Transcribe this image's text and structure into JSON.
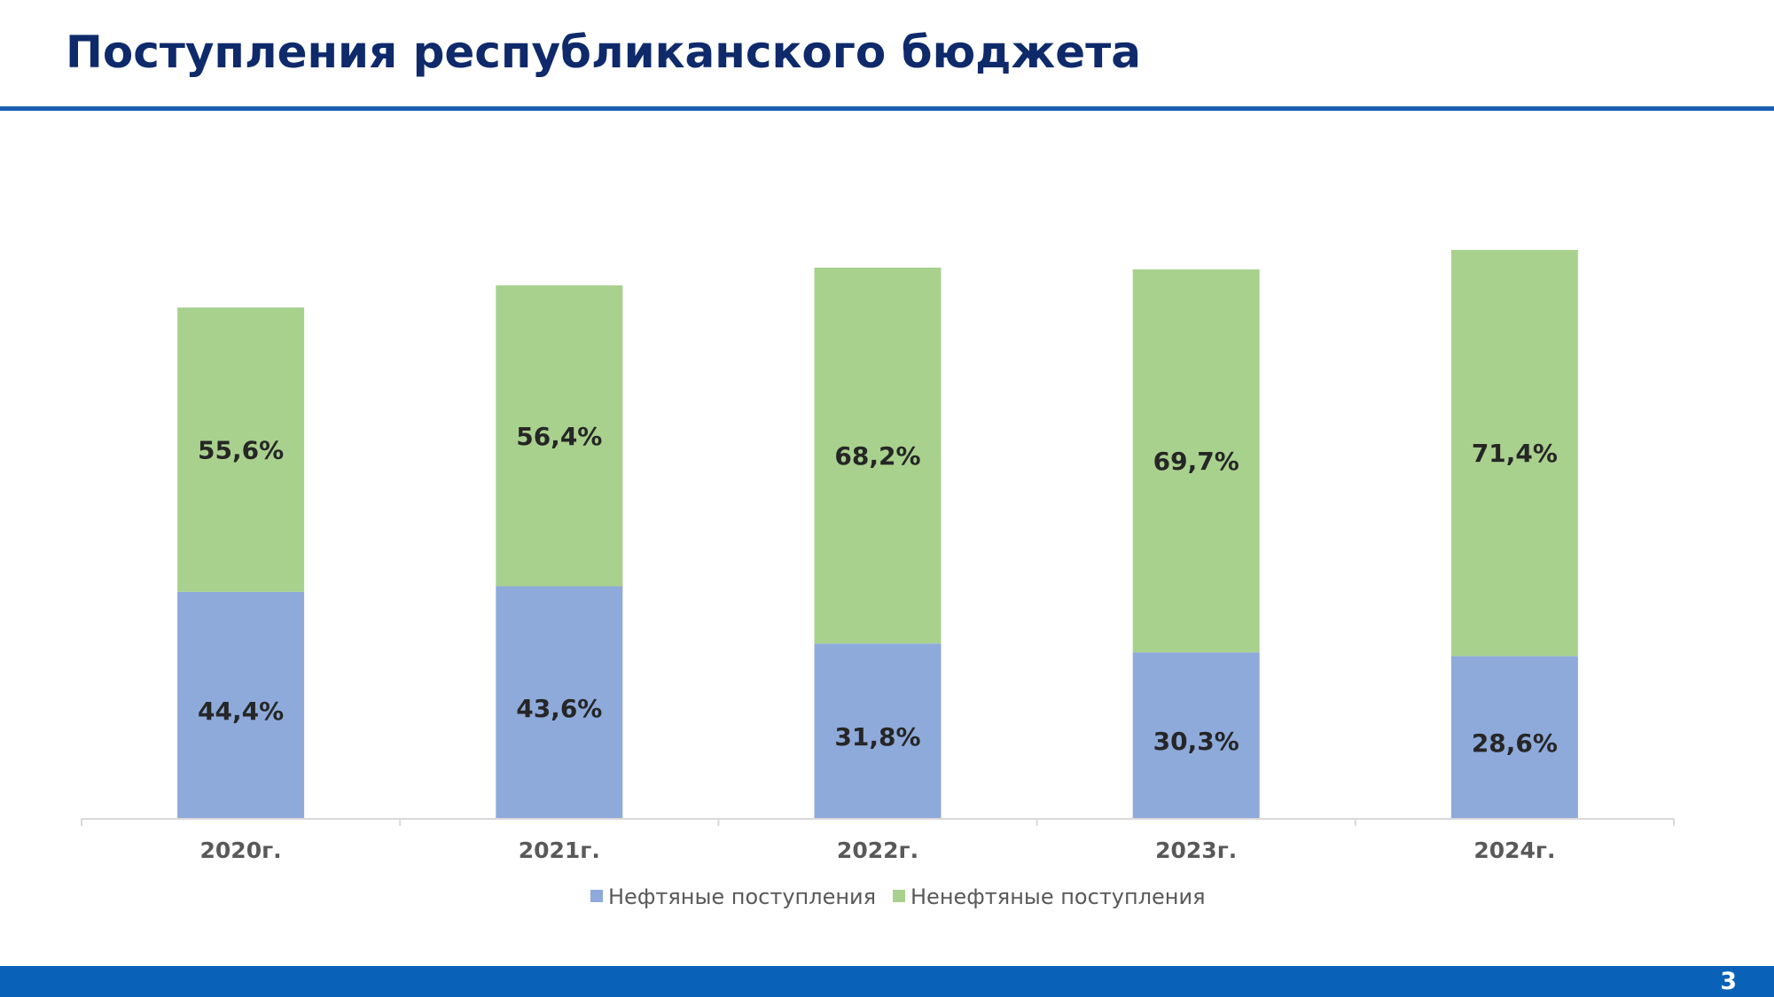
{
  "slide": {
    "title": "Поступления республиканского бюджета",
    "page_number": "3"
  },
  "colors": {
    "title": "#0e2a6b",
    "rule": "#1a5fb4",
    "footer": "#0a62b8",
    "oil": "#8eaadb",
    "non_oil": "#a9d18e",
    "label": "#262626",
    "axis_text": "#595959"
  },
  "chart_data": {
    "type": "bar",
    "stacked": true,
    "categories": [
      "2020г.",
      "2021г.",
      "2022г.",
      "2023г.",
      "2024г."
    ],
    "series": [
      {
        "name": "Нефтяные поступления",
        "values": [
          44.4,
          43.6,
          31.8,
          30.3,
          28.6
        ],
        "labels": [
          "44,4%",
          "43,6%",
          "31,8%",
          "30,3%",
          "28,6%"
        ],
        "color": "#8eaadb"
      },
      {
        "name": "Ненефтяные поступления",
        "values": [
          55.6,
          56.4,
          68.2,
          69.7,
          71.4
        ],
        "labels": [
          "55,6%",
          "56,4%",
          "68,2%",
          "69,7%",
          "71,4%"
        ],
        "color": "#a9d18e"
      }
    ],
    "relative_totals": [
      577,
      602,
      622,
      620,
      642
    ],
    "legend_position": "bottom",
    "grid": false
  }
}
